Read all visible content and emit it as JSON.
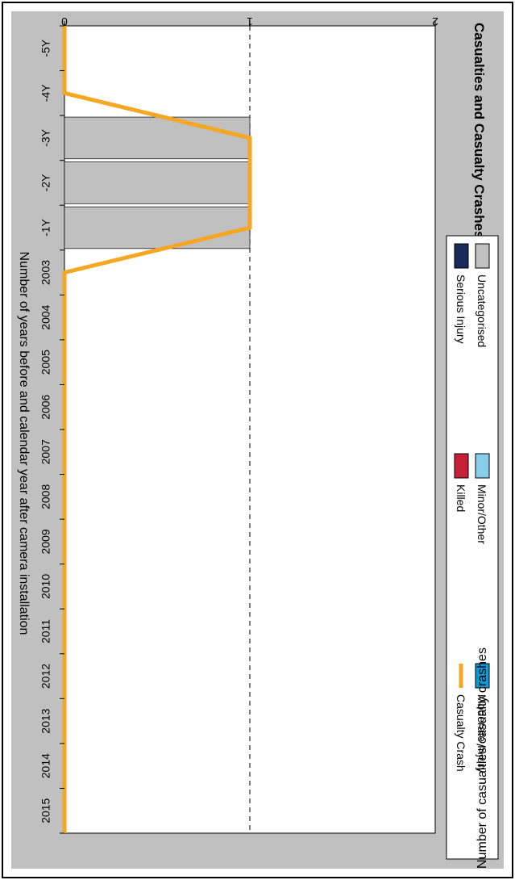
{
  "chart_data": {
    "type": "bar",
    "title": "Casualties and Casualty Crashes",
    "xlabel": "Number of years before and calendar year after camera installation",
    "ylabel": "Number of casualties/casualty crashes",
    "categories": [
      "-5Y",
      "-4Y",
      "-3Y",
      "-2Y",
      "-1Y",
      "2003",
      "2004",
      "2005",
      "2006",
      "2007",
      "2008",
      "2009",
      "2010",
      "2011",
      "2012",
      "2013",
      "2014",
      "2015"
    ],
    "ylim": [
      0,
      2
    ],
    "yticks": [
      "0",
      "1",
      "2"
    ],
    "grid": "dashed line at y=1",
    "legend_position": "top",
    "series": [
      {
        "name": "Uncategorised",
        "color": "#c0c0c0",
        "values": [
          0,
          0,
          1,
          1,
          1,
          0,
          0,
          0,
          0,
          0,
          0,
          0,
          0,
          0,
          0,
          0,
          0,
          0
        ]
      },
      {
        "name": "Minor/Other",
        "color": "#87ceeb",
        "values": [
          0,
          0,
          0,
          0,
          0,
          0,
          0,
          0,
          0,
          0,
          0,
          0,
          0,
          0,
          0,
          0,
          0,
          0
        ]
      },
      {
        "name": "Moderate Injury",
        "color": "#0a9ad6",
        "values": [
          0,
          0,
          0,
          0,
          0,
          0,
          0,
          0,
          0,
          0,
          0,
          0,
          0,
          0,
          0,
          0,
          0,
          0
        ]
      },
      {
        "name": "Serious Injury",
        "color": "#1a2a5a",
        "values": [
          0,
          0,
          0,
          0,
          0,
          0,
          0,
          0,
          0,
          0,
          0,
          0,
          0,
          0,
          0,
          0,
          0,
          0
        ]
      },
      {
        "name": "Killed",
        "color": "#c8203a",
        "values": [
          0,
          0,
          0,
          0,
          0,
          0,
          0,
          0,
          0,
          0,
          0,
          0,
          0,
          0,
          0,
          0,
          0,
          0
        ]
      }
    ],
    "line": {
      "name": "Casualty Crash",
      "color": "#f5a623",
      "values": [
        0,
        0,
        1,
        1,
        1,
        0,
        0,
        0,
        0,
        0,
        0,
        0,
        0,
        0,
        0,
        0,
        0,
        0
      ]
    }
  }
}
